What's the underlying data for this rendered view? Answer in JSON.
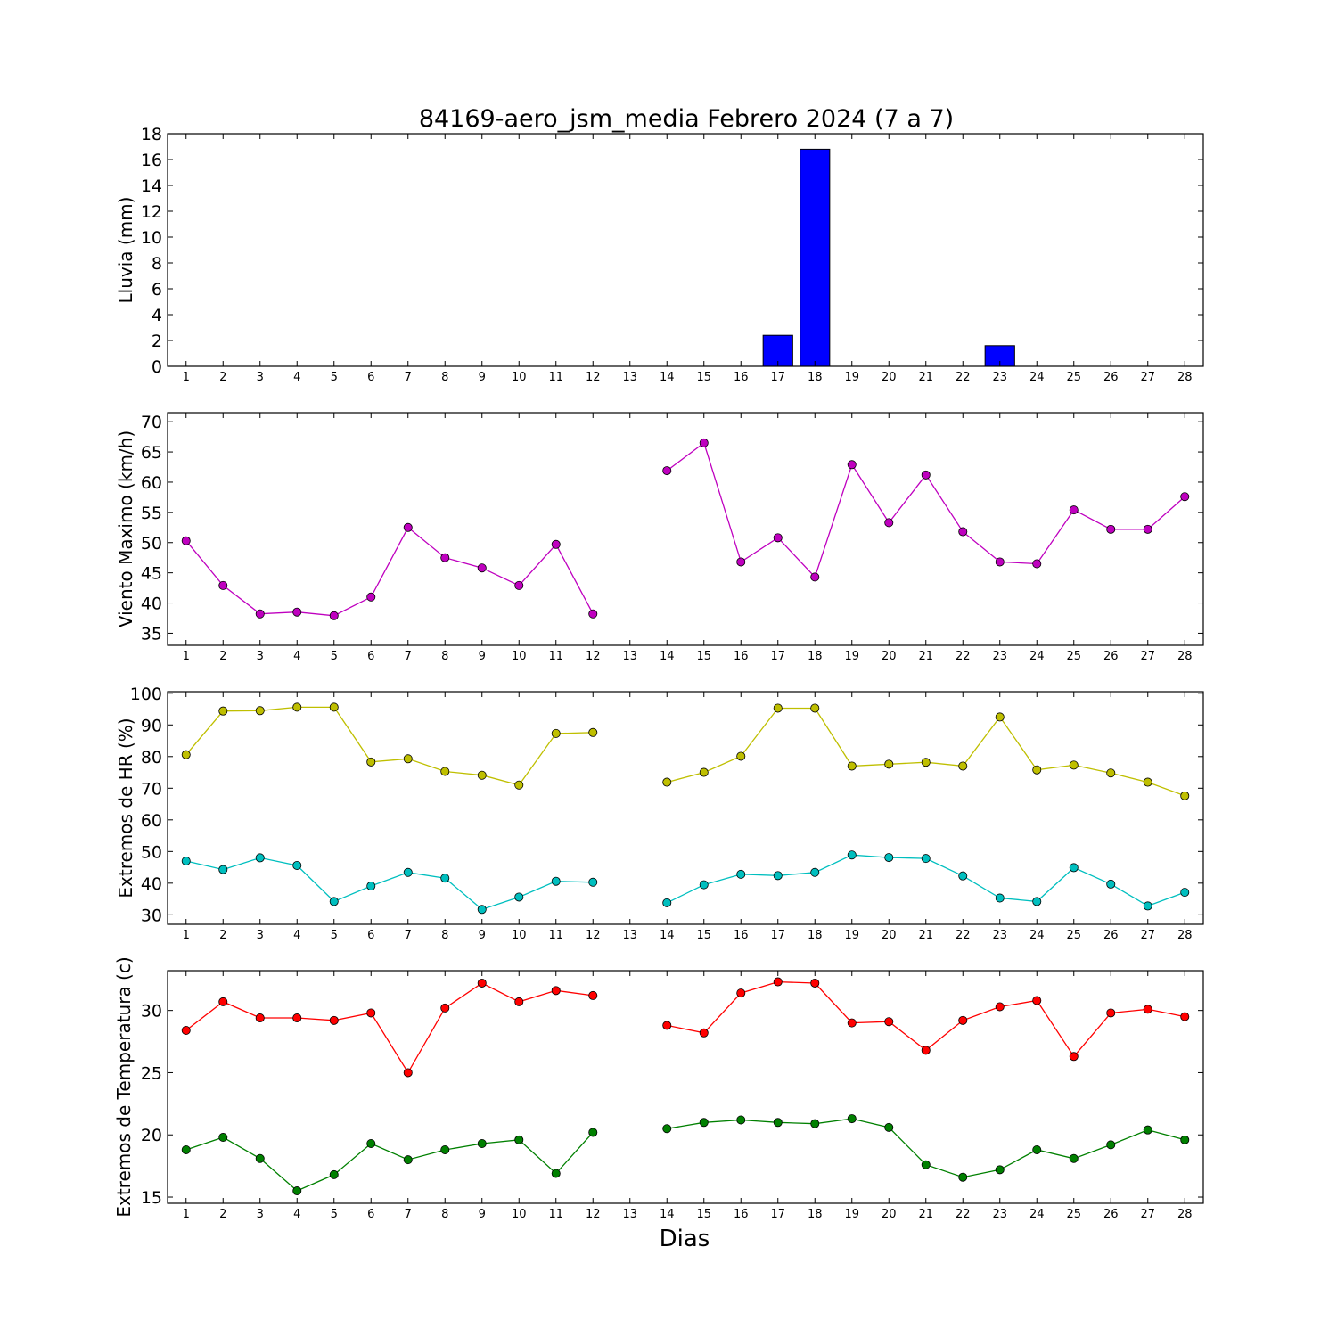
{
  "figure": {
    "title": "84169-aero_jsm_media Febrero 2024  (7 a 7)",
    "xlabel": "Dias"
  },
  "chart_data": [
    {
      "type": "bar",
      "id": "lluvia",
      "ylabel": "Lluvia (mm)",
      "x": [
        1,
        2,
        3,
        4,
        5,
        6,
        7,
        8,
        9,
        10,
        11,
        12,
        13,
        14,
        15,
        16,
        17,
        18,
        19,
        20,
        21,
        22,
        23,
        24,
        25,
        26,
        27,
        28
      ],
      "xticks": [
        1,
        2,
        3,
        4,
        5,
        6,
        7,
        8,
        9,
        10,
        11,
        12,
        13,
        14,
        15,
        16,
        17,
        18,
        19,
        20,
        21,
        22,
        23,
        24,
        25,
        26,
        27,
        28
      ],
      "xlim": [
        0.5,
        28.5
      ],
      "ylim": [
        0,
        18
      ],
      "yticks": [
        0,
        2,
        4,
        6,
        8,
        10,
        12,
        14,
        16,
        18
      ],
      "series": [
        {
          "color": "#0000ff",
          "values": [
            0,
            0,
            0,
            0,
            0,
            0,
            0,
            0,
            0,
            0,
            0,
            0,
            null,
            0,
            0,
            0,
            2.4,
            16.8,
            0,
            0,
            0,
            0,
            1.6,
            0,
            0,
            0,
            0,
            0
          ]
        }
      ]
    },
    {
      "type": "line",
      "id": "viento",
      "ylabel": "Viento Maximo (km/h)",
      "x": [
        1,
        2,
        3,
        4,
        5,
        6,
        7,
        8,
        9,
        10,
        11,
        12,
        13,
        14,
        15,
        16,
        17,
        18,
        19,
        20,
        21,
        22,
        23,
        24,
        25,
        26,
        27,
        28
      ],
      "xticks": [
        1,
        2,
        3,
        4,
        5,
        6,
        7,
        8,
        9,
        10,
        11,
        12,
        13,
        14,
        15,
        16,
        17,
        18,
        19,
        20,
        21,
        22,
        23,
        24,
        25,
        26,
        27,
        28
      ],
      "xlim": [
        0.5,
        28.5
      ],
      "ylim": [
        33,
        71.5
      ],
      "yticks": [
        35,
        40,
        45,
        50,
        55,
        60,
        65,
        70
      ],
      "series": [
        {
          "color": "#bf00bf",
          "values": [
            50.3,
            42.9,
            38.2,
            38.5,
            37.9,
            41.0,
            52.5,
            47.5,
            45.8,
            42.9,
            49.7,
            38.2,
            null,
            61.9,
            66.5,
            46.8,
            50.8,
            44.3,
            62.9,
            53.3,
            61.2,
            51.8,
            46.8,
            46.5,
            55.4,
            52.2,
            52.2,
            57.6
          ]
        }
      ]
    },
    {
      "type": "line",
      "id": "humedad",
      "ylabel": "Extremos de HR (%)",
      "x": [
        1,
        2,
        3,
        4,
        5,
        6,
        7,
        8,
        9,
        10,
        11,
        12,
        13,
        14,
        15,
        16,
        17,
        18,
        19,
        20,
        21,
        22,
        23,
        24,
        25,
        26,
        27,
        28
      ],
      "xticks": [
        1,
        2,
        3,
        4,
        5,
        6,
        7,
        8,
        9,
        10,
        11,
        12,
        13,
        14,
        15,
        16,
        17,
        18,
        19,
        20,
        21,
        22,
        23,
        24,
        25,
        26,
        27,
        28
      ],
      "xlim": [
        0.5,
        28.5
      ],
      "ylim": [
        27,
        100.5
      ],
      "yticks": [
        30,
        40,
        50,
        60,
        70,
        80,
        90,
        100
      ],
      "series": [
        {
          "color": "#bfbf00",
          "values": [
            80.6,
            94.4,
            94.5,
            95.6,
            95.6,
            78.3,
            79.3,
            75.3,
            74.1,
            71.0,
            87.3,
            87.6,
            null,
            71.9,
            75.0,
            80.1,
            95.3,
            95.3,
            77.0,
            77.6,
            78.2,
            77.0,
            92.5,
            75.8,
            77.3,
            74.8,
            71.9,
            67.6
          ]
        },
        {
          "color": "#00bfbf",
          "values": [
            47.0,
            44.3,
            48.0,
            45.6,
            34.2,
            39.1,
            43.4,
            41.6,
            31.7,
            35.6,
            40.6,
            40.3,
            null,
            33.8,
            39.5,
            42.8,
            42.4,
            43.4,
            48.9,
            48.1,
            47.8,
            42.3,
            35.3,
            34.2,
            44.9,
            39.7,
            32.8,
            37.1
          ]
        }
      ]
    },
    {
      "type": "line",
      "id": "temperatura",
      "ylabel": "Extremos de Temperatura (c)",
      "x": [
        1,
        2,
        3,
        4,
        5,
        6,
        7,
        8,
        9,
        10,
        11,
        12,
        13,
        14,
        15,
        16,
        17,
        18,
        19,
        20,
        21,
        22,
        23,
        24,
        25,
        26,
        27,
        28
      ],
      "xticks": [
        1,
        2,
        3,
        4,
        5,
        6,
        7,
        8,
        9,
        10,
        11,
        12,
        13,
        14,
        15,
        16,
        17,
        18,
        19,
        20,
        21,
        22,
        23,
        24,
        25,
        26,
        27,
        28
      ],
      "xlim": [
        0.5,
        28.5
      ],
      "ylim": [
        14.5,
        33.2
      ],
      "yticks": [
        15,
        20,
        25,
        30
      ],
      "series": [
        {
          "color": "#ff0000",
          "values": [
            28.4,
            30.7,
            29.4,
            29.4,
            29.2,
            29.8,
            25.0,
            30.2,
            32.2,
            30.7,
            31.6,
            31.2,
            null,
            28.8,
            28.2,
            31.4,
            32.3,
            32.2,
            29.0,
            29.1,
            26.8,
            29.2,
            30.3,
            30.8,
            26.3,
            29.8,
            30.1,
            29.5
          ]
        },
        {
          "color": "#008000",
          "values": [
            18.8,
            19.8,
            18.1,
            15.5,
            16.8,
            19.3,
            18.0,
            18.8,
            19.3,
            19.6,
            16.9,
            20.2,
            null,
            20.5,
            21.0,
            21.2,
            21.0,
            20.9,
            21.3,
            20.6,
            17.6,
            16.6,
            17.2,
            18.8,
            18.1,
            19.2,
            20.4,
            19.6
          ]
        }
      ]
    }
  ]
}
